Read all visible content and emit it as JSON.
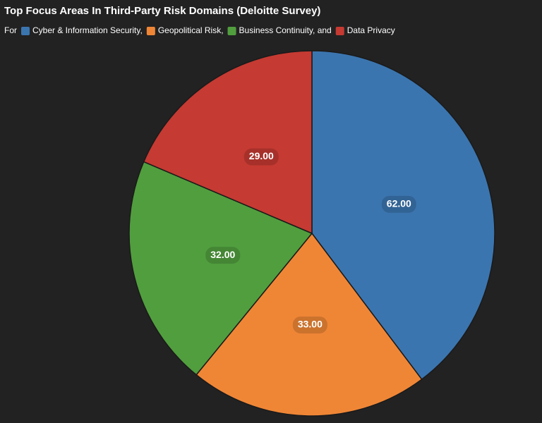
{
  "chart_data": {
    "type": "pie",
    "title": "Top Focus Areas In Third-Party Risk Domains (Deloitte Survey)",
    "legend_title": "For",
    "legend_position": "top-left",
    "categories": [
      "Cyber & Information Security,",
      "Geopolitical Risk,",
      "Business Continuity, and",
      "Data Privacy"
    ],
    "values": [
      62,
      33,
      32,
      29
    ],
    "value_labels": [
      "62.00",
      "33.00",
      "32.00",
      "29.00"
    ],
    "colors": [
      "#3b75af",
      "#ef8636",
      "#519e3e",
      "#c53a32"
    ]
  }
}
